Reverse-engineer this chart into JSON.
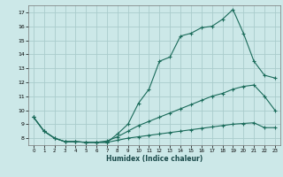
{
  "xlabel": "Humidex (Indice chaleur)",
  "bg_color": "#cce8e8",
  "grid_color": "#aacccc",
  "line_color": "#1a6b5a",
  "xlim": [
    -0.5,
    23.5
  ],
  "ylim": [
    7.5,
    17.5
  ],
  "xticks": [
    0,
    1,
    2,
    3,
    4,
    5,
    6,
    7,
    8,
    9,
    10,
    11,
    12,
    13,
    14,
    15,
    16,
    17,
    18,
    19,
    20,
    21,
    22,
    23
  ],
  "yticks": [
    8,
    9,
    10,
    11,
    12,
    13,
    14,
    15,
    16,
    17
  ],
  "series1_x": [
    0,
    1,
    2,
    3,
    4,
    5,
    6,
    7,
    8,
    9,
    10,
    11,
    12,
    13,
    14,
    15,
    16,
    17,
    18,
    19,
    20,
    21,
    22,
    23
  ],
  "series1_y": [
    9.5,
    8.5,
    8.0,
    7.75,
    7.75,
    7.7,
    7.7,
    7.7,
    8.3,
    9.0,
    10.5,
    11.5,
    13.5,
    13.8,
    15.3,
    15.5,
    15.9,
    16.0,
    16.5,
    17.2,
    15.5,
    13.5,
    12.5,
    12.3
  ],
  "series2_x": [
    0,
    1,
    2,
    3,
    4,
    5,
    6,
    7,
    8,
    9,
    10,
    11,
    12,
    13,
    14,
    15,
    16,
    17,
    18,
    19,
    20,
    21,
    22,
    23
  ],
  "series2_y": [
    9.5,
    8.5,
    8.0,
    7.75,
    7.75,
    7.7,
    7.7,
    7.8,
    8.1,
    8.5,
    8.9,
    9.2,
    9.5,
    9.8,
    10.1,
    10.4,
    10.7,
    11.0,
    11.2,
    11.5,
    11.7,
    11.8,
    11.0,
    10.0
  ],
  "series3_x": [
    0,
    1,
    2,
    3,
    4,
    5,
    6,
    7,
    8,
    9,
    10,
    11,
    12,
    13,
    14,
    15,
    16,
    17,
    18,
    19,
    20,
    21,
    22,
    23
  ],
  "series3_y": [
    9.5,
    8.5,
    8.0,
    7.75,
    7.75,
    7.7,
    7.7,
    7.7,
    7.85,
    8.0,
    8.1,
    8.2,
    8.3,
    8.4,
    8.5,
    8.6,
    8.7,
    8.8,
    8.9,
    9.0,
    9.05,
    9.1,
    8.75,
    8.75
  ]
}
